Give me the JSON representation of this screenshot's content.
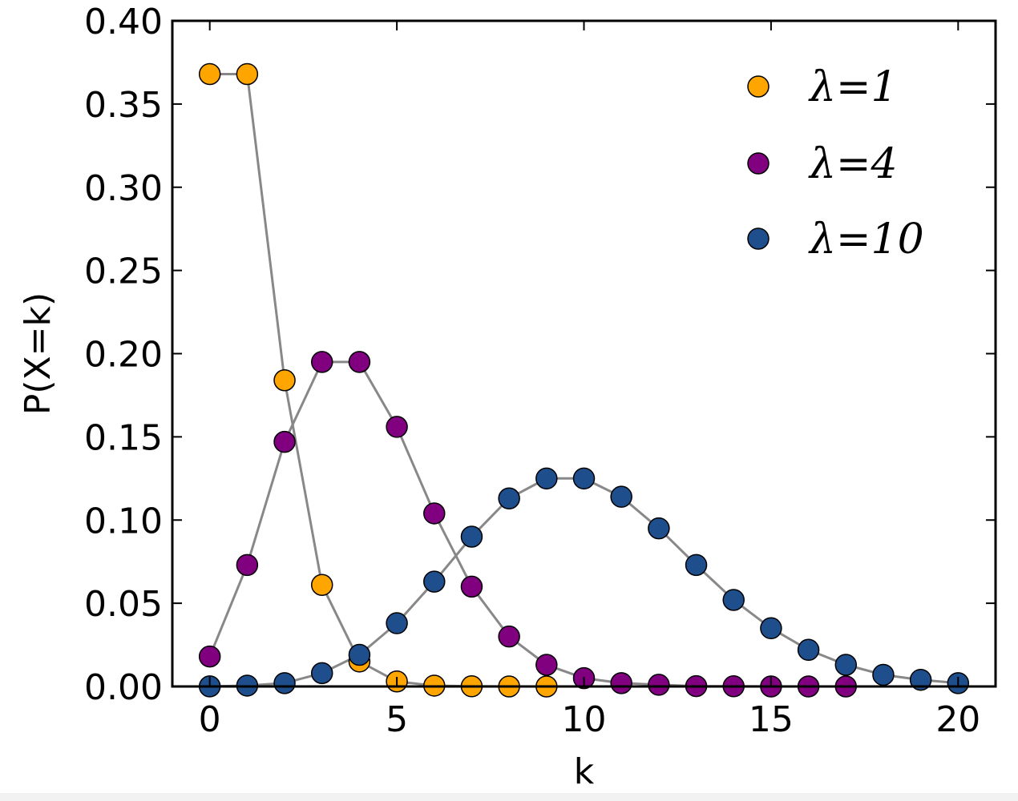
{
  "chart_data": {
    "type": "line",
    "xlabel": "k",
    "ylabel": "P(X=k)",
    "xlim": [
      -1,
      21
    ],
    "ylim": [
      0,
      0.4
    ],
    "x_ticks": [
      0,
      5,
      10,
      15,
      20
    ],
    "x_tick_labels": [
      "0",
      "5",
      "10",
      "15",
      "20"
    ],
    "y_ticks": [
      0,
      0.05,
      0.1,
      0.15,
      0.2,
      0.25,
      0.3,
      0.35,
      0.4
    ],
    "y_tick_labels": [
      "0.00",
      "0.05",
      "0.10",
      "0.15",
      "0.20",
      "0.25",
      "0.30",
      "0.35",
      "0.40"
    ],
    "grid": false,
    "legend_position": "top-right",
    "line_color": "#888888",
    "series": [
      {
        "name": "λ=1",
        "color": "#FFA500",
        "x": [
          0,
          1,
          2,
          3,
          4,
          5,
          6,
          7,
          8,
          9
        ],
        "values": [
          0.368,
          0.368,
          0.184,
          0.061,
          0.015,
          0.003,
          0.0005,
          0.0001,
          0.0,
          0.0
        ]
      },
      {
        "name": "λ=4",
        "color": "#800080",
        "x": [
          0,
          1,
          2,
          3,
          4,
          5,
          6,
          7,
          8,
          9,
          10,
          11,
          12,
          13,
          14,
          15,
          16,
          17
        ],
        "values": [
          0.018,
          0.073,
          0.147,
          0.195,
          0.195,
          0.156,
          0.104,
          0.06,
          0.03,
          0.013,
          0.005,
          0.002,
          0.001,
          0.0002,
          0.0001,
          0.0,
          0.0,
          0.0
        ]
      },
      {
        "name": "λ=10",
        "color": "#1F4E8C",
        "x": [
          0,
          1,
          2,
          3,
          4,
          5,
          6,
          7,
          8,
          9,
          10,
          11,
          12,
          13,
          14,
          15,
          16,
          17,
          18,
          19,
          20
        ],
        "values": [
          5e-05,
          0.0005,
          0.002,
          0.008,
          0.019,
          0.038,
          0.063,
          0.09,
          0.113,
          0.125,
          0.125,
          0.114,
          0.095,
          0.073,
          0.052,
          0.035,
          0.022,
          0.013,
          0.007,
          0.004,
          0.002
        ]
      }
    ]
  }
}
